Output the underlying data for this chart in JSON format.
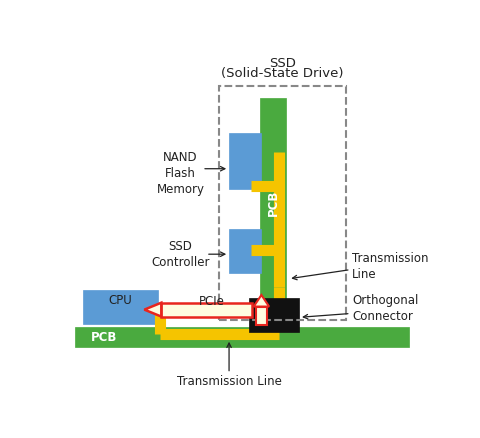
{
  "background_color": "#ffffff",
  "colors": {
    "green": "#4aaa3f",
    "blue": "#5b9bd5",
    "yellow": "#f5c400",
    "black": "#111111",
    "gray_dashed": "#888888",
    "red_arrow": "#e8251e",
    "light_yellow": "#fffce0",
    "text": "#222222",
    "white": "#ffffff"
  },
  "labels": {
    "ssd_title_line1": "SSD",
    "ssd_title_line2": "(Solid-State Drive)",
    "nand": "NAND\nFlash\nMemory",
    "ssd_controller": "SSD\nController",
    "cpu": "CPU",
    "pcb_bottom": "PCB",
    "pcb_ssd": "PCB",
    "pcie": "PCIe",
    "transmission_line_bottom": "Transmission Line",
    "transmission_line_right": "Transmission\nLine",
    "orthogonal_connector": "Orthogonal\nConnector"
  }
}
